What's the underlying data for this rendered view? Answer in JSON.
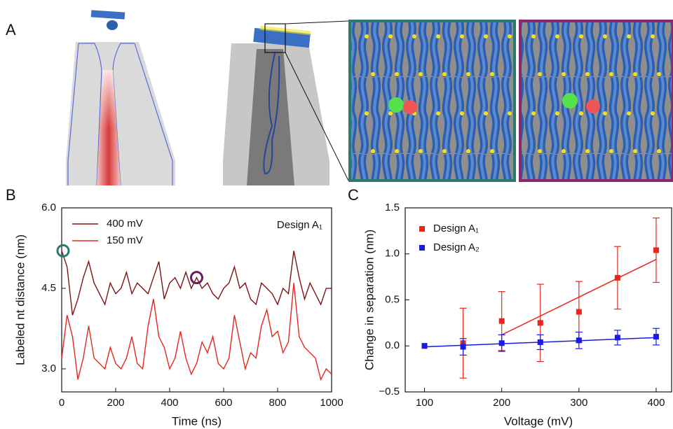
{
  "panel_labels": [
    "A",
    "B",
    "C"
  ],
  "chart_data": [
    {
      "type": "line",
      "annotation": "Design A₁",
      "xlabel": "Time (ns)",
      "ylabel": "Labeled nt distance (nm)",
      "x": [
        0,
        20,
        40,
        60,
        80,
        100,
        120,
        140,
        160,
        180,
        200,
        220,
        240,
        260,
        280,
        300,
        320,
        340,
        360,
        380,
        400,
        420,
        440,
        460,
        480,
        500,
        520,
        540,
        560,
        580,
        600,
        620,
        640,
        660,
        680,
        700,
        720,
        740,
        760,
        780,
        800,
        820,
        840,
        860,
        880,
        900,
        920,
        940,
        960,
        980,
        1000
      ],
      "series": [
        {
          "name": "400 mV",
          "color": "#7b1416",
          "values": [
            5.2,
            4.9,
            4.0,
            4.3,
            4.7,
            5.0,
            4.6,
            4.4,
            4.2,
            4.6,
            4.4,
            4.5,
            4.8,
            4.4,
            4.6,
            4.5,
            4.4,
            4.7,
            5.0,
            4.3,
            4.6,
            4.7,
            4.5,
            4.8,
            4.5,
            4.7,
            4.5,
            4.6,
            4.4,
            4.3,
            4.5,
            4.6,
            4.9,
            4.5,
            4.6,
            4.3,
            4.2,
            4.6,
            4.5,
            4.4,
            4.2,
            4.5,
            4.4,
            5.2,
            4.7,
            4.3,
            4.6,
            4.4,
            4.2,
            4.5,
            4.5
          ]
        },
        {
          "name": "150 mV",
          "color": "#e8261c",
          "values": [
            3.2,
            4.0,
            3.6,
            2.8,
            3.2,
            3.8,
            3.2,
            3.1,
            3.0,
            3.4,
            3.1,
            3.0,
            3.2,
            3.6,
            3.1,
            3.0,
            3.8,
            4.3,
            3.6,
            3.4,
            3.0,
            3.2,
            3.7,
            3.2,
            2.9,
            3.1,
            3.5,
            3.3,
            3.6,
            3.1,
            3.0,
            3.2,
            4.0,
            3.5,
            3.0,
            3.3,
            3.2,
            3.8,
            4.1,
            3.6,
            3.7,
            3.3,
            3.5,
            4.6,
            3.6,
            3.4,
            3.3,
            3.2,
            2.8,
            3.0,
            2.9
          ]
        }
      ],
      "xlim": [
        0,
        1000
      ],
      "xticks": [
        0,
        200,
        400,
        600,
        800,
        1000
      ],
      "ylim": [
        2.57,
        6.0
      ],
      "yticks": [
        {
          "value": 3.0,
          "label": "3.0"
        },
        {
          "value": 4.5,
          "label": "4.5"
        },
        {
          "value": 6.0,
          "label": "6.0"
        }
      ]
    },
    {
      "type": "scatter",
      "xlabel": "Voltage (mV)",
      "ylabel": "Change in separation (nm)",
      "x": [
        100,
        150,
        200,
        250,
        300,
        350,
        400
      ],
      "series": [
        {
          "name": "Design A₁",
          "color": "#e8261c",
          "values": [
            0,
            0.03,
            0.27,
            0.25,
            0.37,
            0.74,
            1.04
          ],
          "errors": [
            0,
            0.38,
            0.32,
            0.42,
            0.33,
            0.34,
            0.35
          ],
          "fit": {
            "x": [
              200,
              400
            ],
            "values": [
              0.12,
              0.94
            ]
          }
        },
        {
          "name": "Design A₂",
          "color": "#1a1ae6",
          "values": [
            0,
            -0.01,
            0.03,
            0.04,
            0.06,
            0.09,
            0.1
          ],
          "errors": [
            0,
            0.09,
            0.09,
            0.08,
            0.09,
            0.08,
            0.09
          ],
          "fit": {
            "x": [
              100,
              400
            ],
            "values": [
              -0.01,
              0.09
            ]
          }
        }
      ],
      "xlim": [
        75,
        420
      ],
      "xticks": [
        100,
        200,
        300,
        400
      ],
      "ylim": [
        -0.5,
        1.5
      ],
      "yticks": [
        {
          "value": -0.5,
          "label": "−0.5"
        },
        {
          "value": 0,
          "label": "0.0"
        },
        {
          "value": 0.5,
          "label": "0.5"
        },
        {
          "value": 1.0,
          "label": "1.0"
        },
        {
          "value": 1.5,
          "label": "1.5"
        }
      ]
    }
  ]
}
